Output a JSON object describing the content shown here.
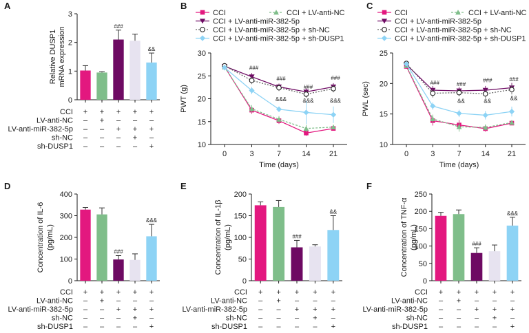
{
  "figure": {
    "colors": {
      "CCI": "#e3187f",
      "LV-anti-NC": "#7fbe8a",
      "LV-anti-miR-382-5p": "#6e0a63",
      "sh-NC": "#e7e3f0",
      "sh-DUSP1": "#8dd3f5"
    },
    "treatment_table": {
      "row_labels": [
        "CCI",
        "LV-anti-NC",
        "LV-anti-miR-382-5p",
        "sh-NC",
        "sh-DUSP1"
      ],
      "matrix": [
        [
          "+",
          "+",
          "+",
          "+",
          "+"
        ],
        [
          "–",
          "+",
          "–",
          "–",
          "–"
        ],
        [
          "–",
          "–",
          "+",
          "+",
          "+"
        ],
        [
          "–",
          "–",
          "–",
          "+",
          "–"
        ],
        [
          "–",
          "–",
          "–",
          "–",
          "+"
        ]
      ]
    }
  },
  "chart_data": [
    {
      "panel": "A",
      "type": "bar",
      "ylabel": "Relative DUSP1 mRNA expression",
      "ylim": [
        0,
        3
      ],
      "yticks": [
        0,
        1,
        2,
        3
      ],
      "values": [
        1.02,
        0.95,
        2.1,
        2.06,
        1.3
      ],
      "errors": [
        0.17,
        0.03,
        0.33,
        0.23,
        0.33
      ],
      "sig": [
        "",
        "",
        "###",
        "",
        "&&"
      ]
    },
    {
      "panel": "B",
      "type": "line",
      "ylabel": "PWT (g)",
      "xlabel": "Time (days)",
      "ylim": [
        10,
        30
      ],
      "yticks": [
        10,
        15,
        20,
        25,
        30
      ],
      "x": [
        0,
        3,
        7,
        14,
        21
      ],
      "legend": [
        "CCI",
        "CCI + LV-anti-NC",
        "CCI + LV-anti-miR-382-5p",
        "CCI + LV-anti-miR-382-5p + sh-NC",
        "CCI + LV-anti-miR-382-5p + sh-DUSP1"
      ],
      "series": [
        {
          "name": "CCI",
          "values": [
            27,
            17.5,
            15.2,
            12.5,
            13.5
          ],
          "errors": [
            0.6,
            0.8,
            0.7,
            0.6,
            0.5
          ]
        },
        {
          "name": "CCI + LV-anti-NC",
          "values": [
            26.9,
            17.8,
            15.5,
            13.5,
            13.8
          ],
          "errors": [
            0.6,
            0.8,
            0.7,
            0.8,
            0.5
          ]
        },
        {
          "name": "CCI + LV-anti-miR-382-5p",
          "values": [
            27.1,
            24.8,
            22.6,
            21.5,
            22.6
          ],
          "errors": [
            0.6,
            0.8,
            0.7,
            0.8,
            0.8
          ]
        },
        {
          "name": "CCI + LV-anti-miR-382-5p + sh-NC",
          "values": [
            27.2,
            24,
            22.4,
            21,
            22.2
          ],
          "errors": [
            0.6,
            0.8,
            0.7,
            0.8,
            0.8
          ]
        },
        {
          "name": "CCI + LV-anti-miR-382-5p + sh-DUSP1",
          "values": [
            26.8,
            21.8,
            17.7,
            17,
            16.5
          ],
          "errors": [
            0.6,
            0.8,
            0.6,
            2.5,
            1.8
          ]
        }
      ],
      "annotations": [
        {
          "x": 3,
          "y": 26.3,
          "text": "###"
        },
        {
          "x": 7,
          "y": 24.0,
          "text": "###"
        },
        {
          "x": 14,
          "y": 22.2,
          "text": "###"
        },
        {
          "x": 21,
          "y": 24.1,
          "text": "###"
        },
        {
          "x": 7,
          "y": 19.5,
          "text": "&&&"
        },
        {
          "x": 14,
          "y": 19.2,
          "text": "&&&"
        },
        {
          "x": 21,
          "y": 19.2,
          "text": "&&&"
        }
      ]
    },
    {
      "panel": "C",
      "type": "line",
      "ylabel": "PWL (sec)",
      "xlabel": "Time (days)",
      "ylim": [
        10,
        25
      ],
      "yticks": [
        10,
        15,
        20,
        25
      ],
      "x": [
        0,
        3,
        7,
        14,
        21
      ],
      "legend": [
        "CCI",
        "CCI + LV-anti-NC",
        "CCI + LV-anti-miR-382-5p",
        "CCI + LV-anti-miR-382-5p + sh-NC",
        "CCI + LV-anti-miR-382-5p + sh-DUSP1"
      ],
      "series": [
        {
          "name": "CCI",
          "values": [
            22.8,
            13.9,
            13.2,
            12.6,
            13.5
          ],
          "errors": [
            0.4,
            0.8,
            0.8,
            0.5,
            0.3
          ]
        },
        {
          "name": "CCI + LV-anti-NC",
          "values": [
            22.9,
            14.2,
            12.9,
            12.8,
            13.6
          ],
          "errors": [
            0.4,
            0.7,
            0.8,
            0.5,
            0.3
          ]
        },
        {
          "name": "CCI + LV-anti-miR-382-5p",
          "values": [
            23.1,
            18.9,
            18.8,
            18.9,
            19.3
          ],
          "errors": [
            0.4,
            0.7,
            0.6,
            0.7,
            0.8
          ]
        },
        {
          "name": "CCI + LV-anti-miR-382-5p + sh-NC",
          "values": [
            23.3,
            18.4,
            18.5,
            18.3,
            19.0
          ],
          "errors": [
            0.4,
            0.7,
            0.6,
            0.7,
            0.8
          ]
        },
        {
          "name": "CCI + LV-anti-miR-382-5p + sh-DUSP1",
          "values": [
            23.2,
            16.3,
            15.1,
            14.8,
            15.4
          ],
          "errors": [
            0.4,
            0.6,
            0.6,
            0.7,
            0.8
          ]
        }
      ],
      "annotations": [
        {
          "x": 3,
          "y": 19.8,
          "text": "###"
        },
        {
          "x": 7,
          "y": 19.6,
          "text": "###"
        },
        {
          "x": 14,
          "y": 20.2,
          "text": "###"
        },
        {
          "x": 21,
          "y": 20.4,
          "text": "###"
        },
        {
          "x": 7,
          "y": 16.8,
          "text": "&&"
        },
        {
          "x": 14,
          "y": 16.8,
          "text": "&&"
        },
        {
          "x": 21,
          "y": 17.3,
          "text": "&&"
        }
      ]
    },
    {
      "panel": "D",
      "type": "bar",
      "ylabel": "Concentration of IL-6 (pg/mL)",
      "ylim": [
        0,
        400
      ],
      "yticks": [
        0,
        100,
        200,
        300,
        400
      ],
      "values": [
        328,
        306,
        98,
        96,
        205
      ],
      "errors": [
        10,
        30,
        18,
        28,
        55
      ],
      "sig": [
        "",
        "",
        "###",
        "",
        "&&&"
      ]
    },
    {
      "panel": "E",
      "type": "bar",
      "ylabel": "Concentration of IL-1β (pg/mL)",
      "ylim": [
        0,
        200
      ],
      "yticks": [
        0,
        50,
        100,
        150,
        200
      ],
      "values": [
        174,
        170,
        77,
        79,
        117
      ],
      "errors": [
        8,
        15,
        16,
        4,
        33
      ],
      "sig": [
        "",
        "",
        "###",
        "",
        "&&"
      ]
    },
    {
      "panel": "F",
      "type": "bar",
      "ylabel": "Concentration of TNF-α (pg/mL)",
      "ylim": [
        0,
        250
      ],
      "yticks": [
        0,
        50,
        100,
        150,
        200,
        250
      ],
      "values": [
        187,
        192,
        80,
        85,
        159
      ],
      "errors": [
        10,
        12,
        15,
        18,
        24
      ],
      "sig": [
        "",
        "",
        "###",
        "",
        "&&&"
      ]
    }
  ]
}
